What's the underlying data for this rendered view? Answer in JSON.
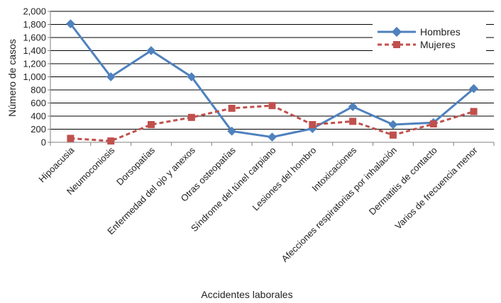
{
  "chart_data": {
    "type": "line",
    "title": "",
    "xlabel": "Accidentes laborales",
    "ylabel": "Número de casos",
    "ylim": [
      0,
      2000
    ],
    "yticks": [
      0,
      200,
      400,
      600,
      800,
      1000,
      1200,
      1400,
      1600,
      1800,
      2000
    ],
    "ytick_labels": [
      "0",
      "200",
      "400",
      "600",
      "800",
      "1,000",
      "1,200",
      "1,400",
      "1,600",
      "1,800",
      "2,000"
    ],
    "grid": true,
    "legend_position": "top-right",
    "categories": [
      "Hipoacusia",
      "Neumoconiosis",
      "Dorsopatías",
      "Enfermedad del ojo y anexos",
      "Otras osteopatías",
      "Síndrome del túnel carpiano",
      "Lesiones del hombro",
      "Intoxicaciones",
      "Afecciones respiratorias por inhalación",
      "Dermatitis de contacto",
      "Varios de frecuencia menor"
    ],
    "series": [
      {
        "name": "Hombres",
        "color": "#4F81BD",
        "line_style": "solid",
        "marker": "diamond",
        "values": [
          1810,
          1000,
          1400,
          1000,
          170,
          80,
          210,
          545,
          270,
          300,
          820
        ]
      },
      {
        "name": "Mujeres",
        "color": "#C0504D",
        "line_style": "dashed",
        "marker": "square",
        "values": [
          60,
          20,
          270,
          380,
          520,
          560,
          270,
          320,
          110,
          280,
          470
        ]
      }
    ]
  }
}
